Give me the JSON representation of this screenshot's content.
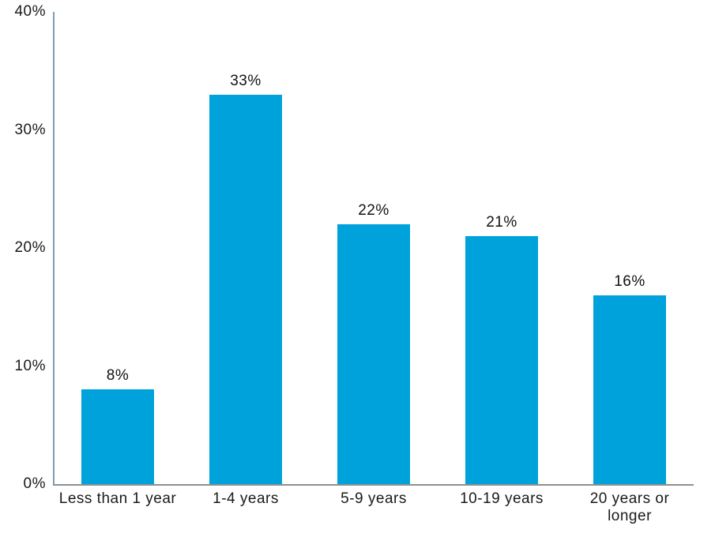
{
  "chart_data": {
    "type": "bar",
    "title": "",
    "categories": [
      "Less than 1 year",
      "1-4 years",
      "5-9 years",
      "10-19 years",
      "20 years or longer"
    ],
    "values": [
      8,
      33,
      22,
      21,
      16
    ],
    "value_labels": [
      "8%",
      "33%",
      "22%",
      "21%",
      "16%"
    ],
    "y_ticks": [
      "40%",
      "30%",
      "20%",
      "10%",
      "0%"
    ],
    "ylim": [
      0,
      40
    ],
    "xlabel": "",
    "ylabel": "",
    "grid": false,
    "legend_position": "none",
    "bar_color": "#00a2dc",
    "y_axis_line_color": "#7c9eb8",
    "x_axis_line_color": "#8f8f8f",
    "text_color": "#1a1a1a"
  }
}
